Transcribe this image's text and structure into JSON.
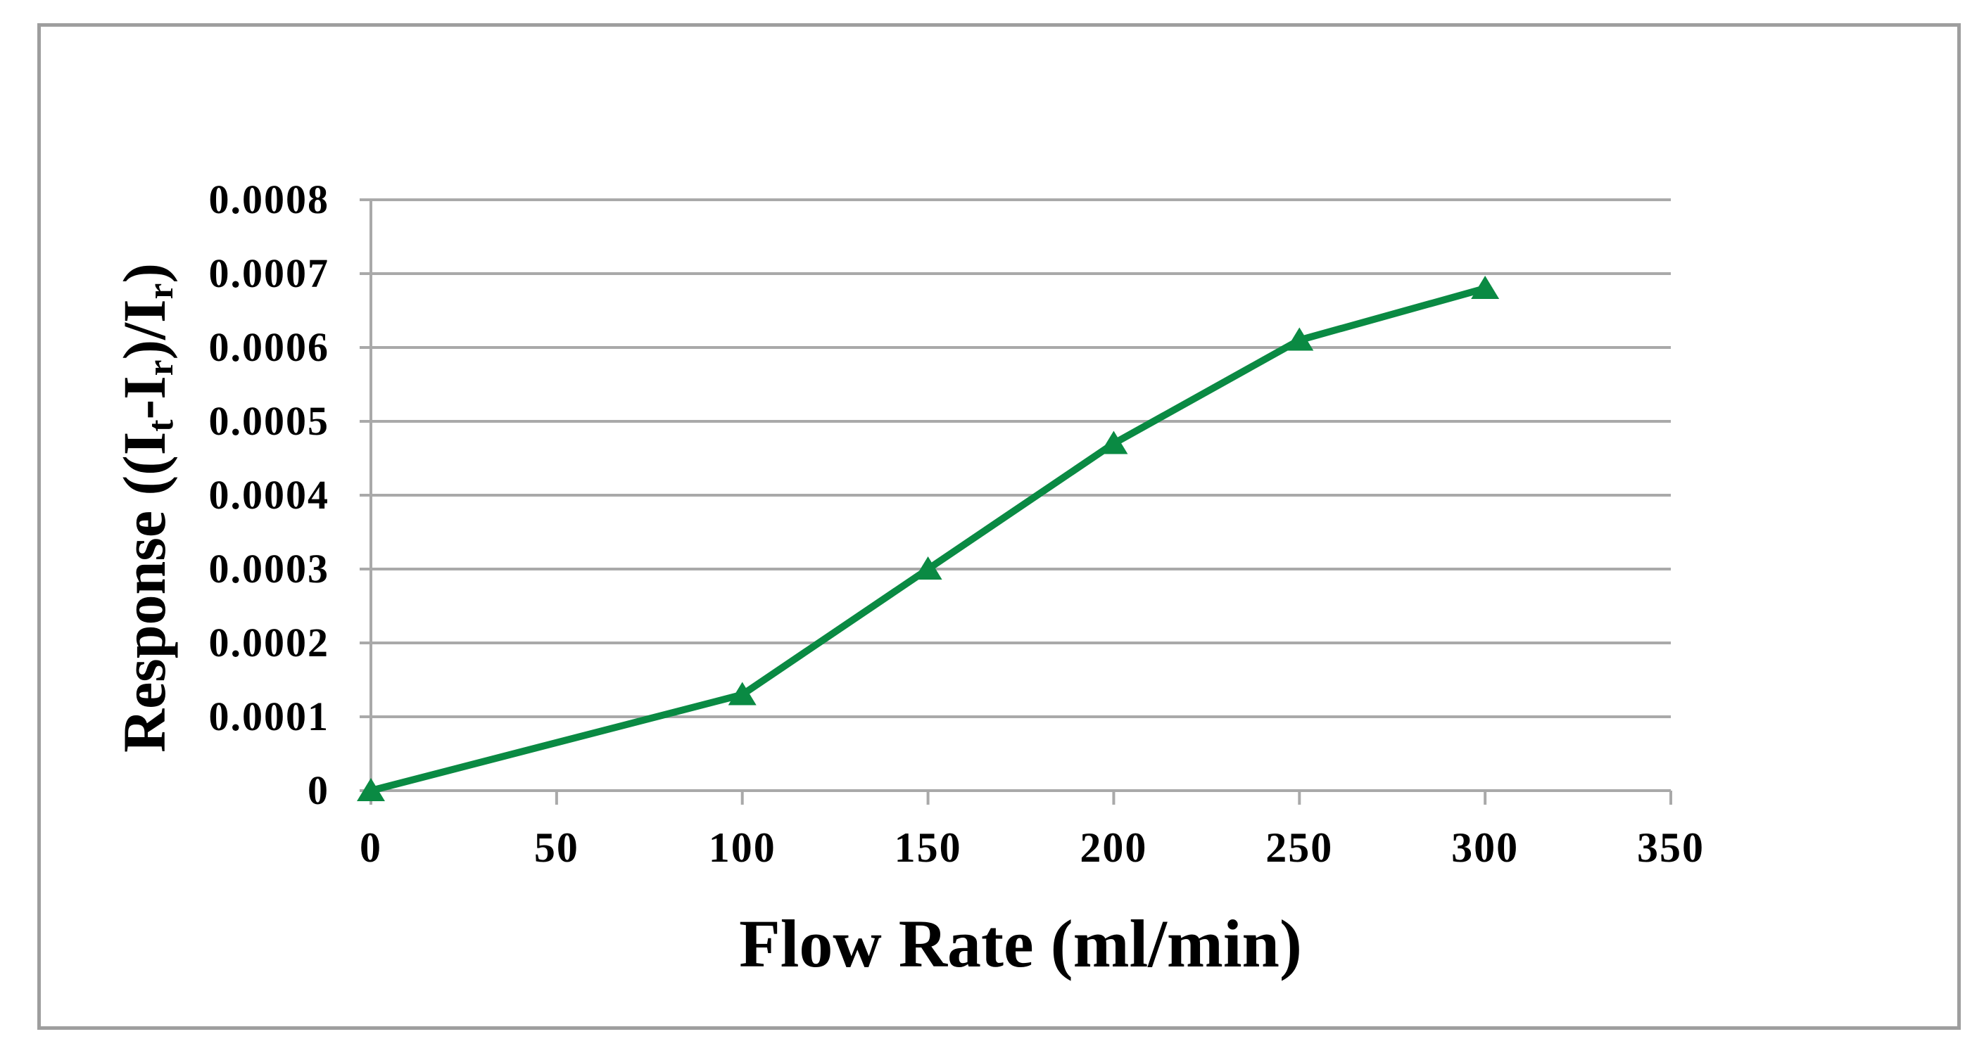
{
  "chart_data": {
    "type": "line",
    "x": [
      0,
      100,
      150,
      200,
      250,
      300
    ],
    "y": [
      0,
      0.00013,
      0.0003,
      0.00047,
      0.00061,
      0.00068
    ],
    "series": [
      {
        "name": "Response",
        "x": [
          0,
          100,
          150,
          200,
          250,
          300
        ],
        "values": [
          0,
          0.00013,
          0.0003,
          0.00047,
          0.00061,
          0.00068
        ]
      }
    ],
    "title": "",
    "xlabel": "Flow Rate (ml/min)",
    "ylabel": "Response ((It-Ir)/Ir)",
    "ylabel_rich": [
      {
        "t": "Response ((I"
      },
      {
        "s": "t"
      },
      {
        "t": "-I"
      },
      {
        "s": "r"
      },
      {
        "t": ")/I"
      },
      {
        "s": "r"
      },
      {
        "t": ")"
      }
    ],
    "xlim": [
      0,
      350
    ],
    "ylim": [
      0,
      0.0008
    ],
    "x_ticks": [
      0,
      50,
      100,
      150,
      200,
      250,
      300,
      350
    ],
    "y_tick_labels": [
      "0",
      "0.0001",
      "0.0002",
      "0.0003",
      "0.0004",
      "0.0005",
      "0.0006",
      "0.0007",
      "0.0008"
    ],
    "grid": "horizontal",
    "legend": "none",
    "line_color": "#0a8a43",
    "marker": "triangle-up",
    "marker_color": "#0a8a43",
    "gridline_color": "#a9a9a9",
    "axis_color": "#a9a9a9",
    "figure_border_color": "#9e9e9e",
    "text_color": "#000000",
    "background_color": "#ffffff"
  }
}
